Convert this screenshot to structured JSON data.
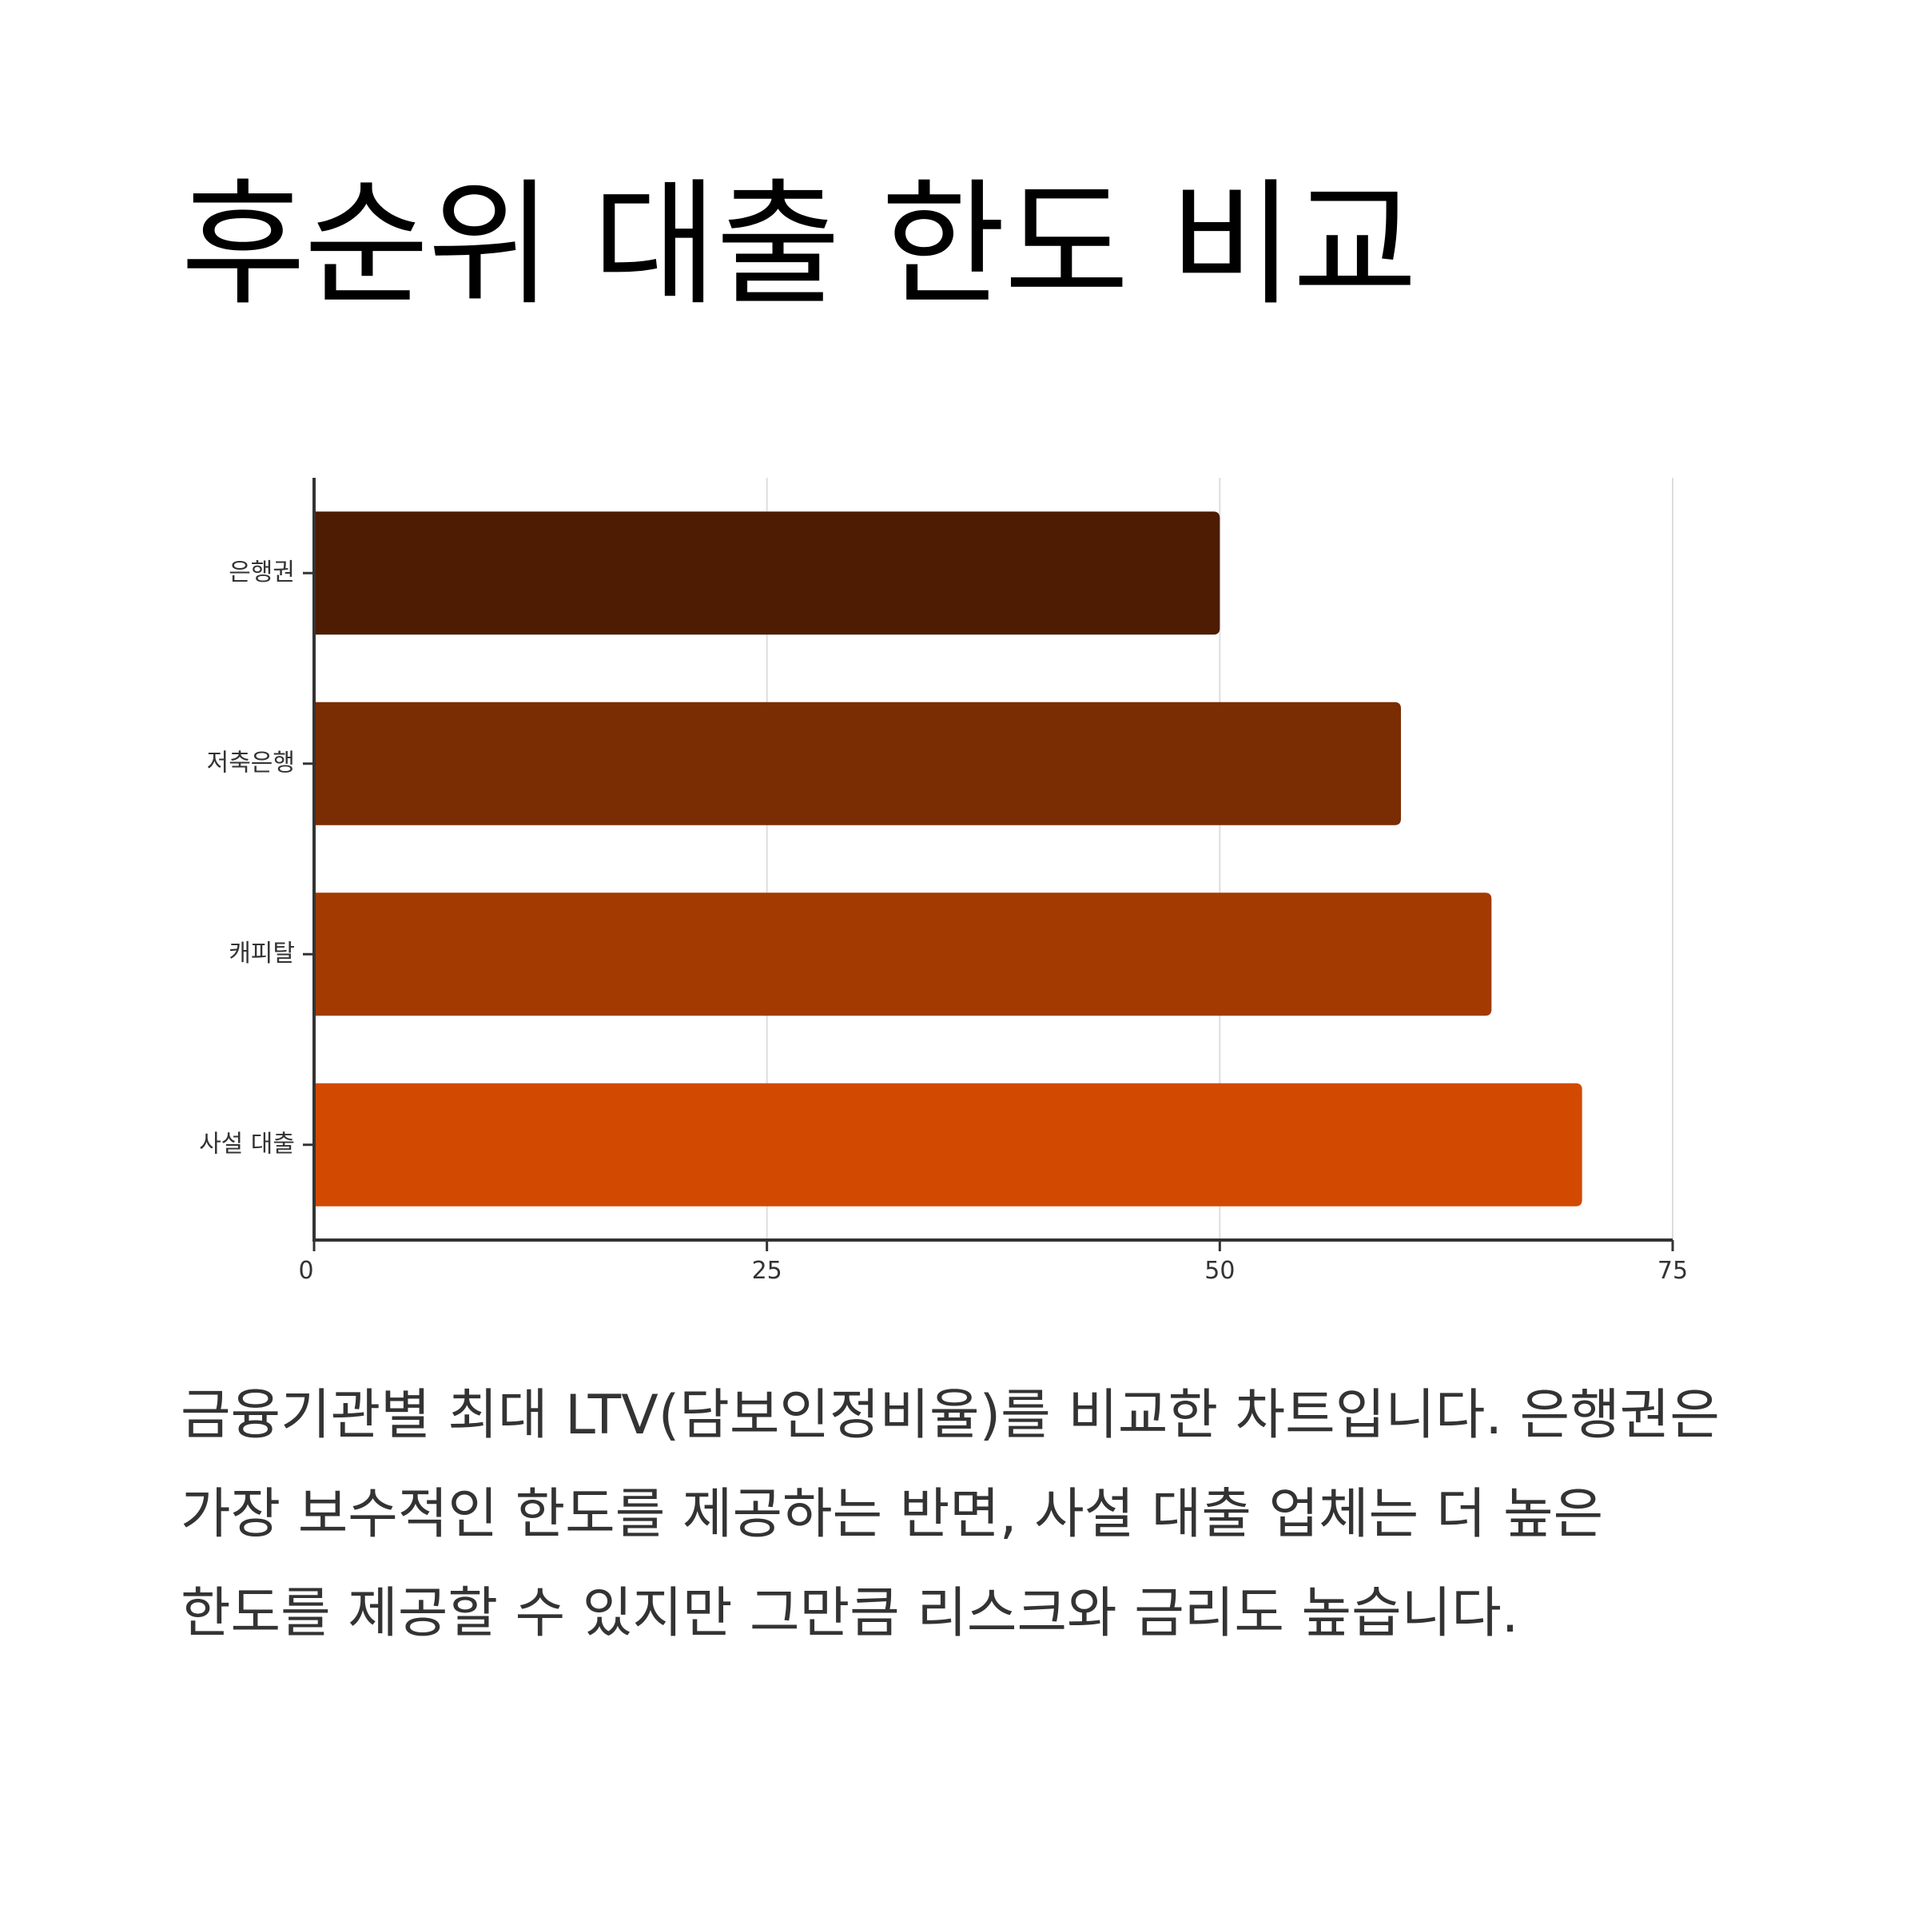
{
  "title": "후순위 대출 한도 비교",
  "description": "금융기관별 최대 LTV(담보인정비율)를 비교한 차트입니다. 은행권은 가장 보수적인 한도를 제공하는 반면, 사설 대출 업체는 더 높은 한도를 제공할 수 있지만 그만큼 리스크와 금리도 높습니다.",
  "chart_data": {
    "type": "bar",
    "orientation": "horizontal",
    "categories": [
      "은행권",
      "저축은행",
      "캐피탈",
      "사설 대출"
    ],
    "values": [
      50,
      60,
      65,
      70
    ],
    "colors": [
      "#4d1c02",
      "#7a2c02",
      "#a33a02",
      "#d24a02"
    ],
    "xlim": [
      0,
      75
    ],
    "xticks": [
      0,
      25,
      50,
      75
    ],
    "xtick_labels": [
      "0",
      "25",
      "50",
      "75"
    ],
    "grid": true,
    "legend": "none"
  }
}
